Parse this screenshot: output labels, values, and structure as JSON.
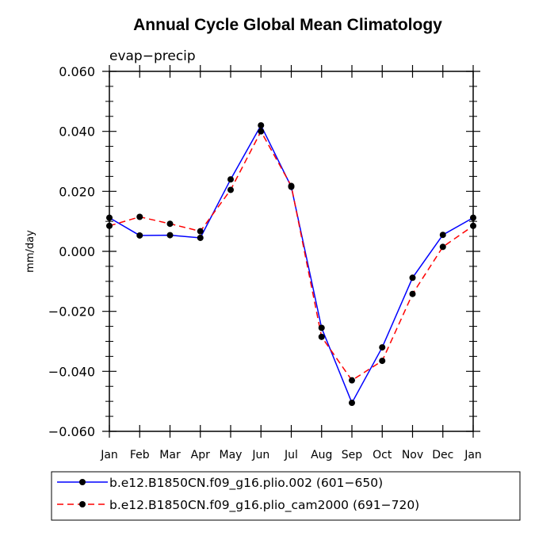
{
  "chart_data": {
    "type": "line",
    "title": "Annual Cycle Global Mean Climatology",
    "subtitle": "evap−precip",
    "xlabel": "",
    "ylabel": "mm/day",
    "categories": [
      "Jan",
      "Feb",
      "Mar",
      "Apr",
      "May",
      "Jun",
      "Jul",
      "Aug",
      "Sep",
      "Oct",
      "Nov",
      "Dec",
      "Jan"
    ],
    "ylim": [
      -0.06,
      0.06
    ],
    "yticks": [
      "0.060",
      "0.040",
      "0.020",
      "0.000",
      "−0.020",
      "−0.040",
      "−0.060"
    ],
    "yticks_values": [
      0.06,
      0.04,
      0.02,
      0.0,
      -0.02,
      -0.04,
      -0.06
    ],
    "grid": false,
    "legend_position": "bottom",
    "series": [
      {
        "name": "b.e12.B1850CN.f09_g16.plio.002 (601−650)",
        "color": "#0000ff",
        "style": "solid",
        "values": [
          0.0112,
          0.0053,
          0.0054,
          0.0045,
          0.024,
          0.042,
          0.0215,
          -0.0255,
          -0.0505,
          -0.032,
          -0.0088,
          0.0055,
          0.0112
        ]
      },
      {
        "name": "b.e12.B1850CN.f09_g16.plio_cam2000 (691−720)",
        "color": "#ff0000",
        "style": "dashed",
        "values": [
          0.0085,
          0.0115,
          0.0092,
          0.0067,
          0.0205,
          0.04,
          0.0218,
          -0.0285,
          -0.043,
          -0.0365,
          -0.0142,
          0.0015,
          0.0085
        ]
      }
    ],
    "marker_color": "#000000"
  }
}
